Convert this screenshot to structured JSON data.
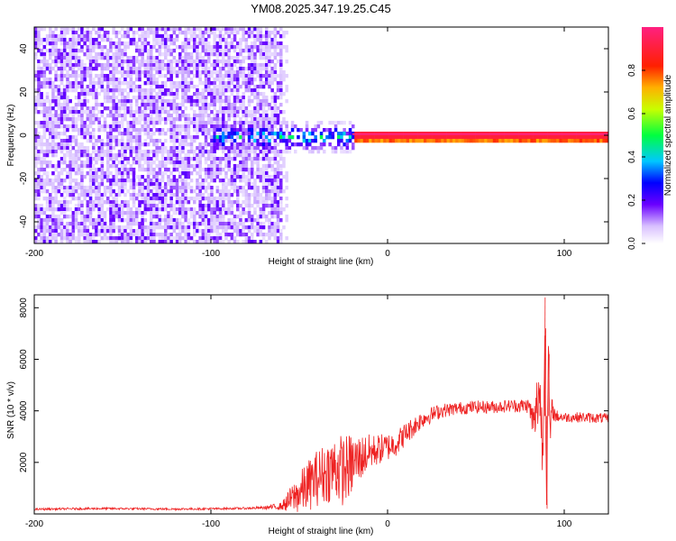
{
  "figure_title": "YM08.2025.347.19.25.C45",
  "chart_data": [
    {
      "type": "heatmap",
      "title": "YM08.2025.347.19.25.C45",
      "xlabel": "Height of straight line (km)",
      "ylabel": "Frequency (Hz)",
      "xlim": [
        -200,
        125
      ],
      "ylim": [
        -50,
        50
      ],
      "xticks": [
        -200,
        -100,
        0,
        100
      ],
      "xtick_labels": [
        "-200",
        "-100",
        "0",
        "100"
      ],
      "yticks": [
        -40,
        -20,
        0,
        20,
        40
      ],
      "ytick_labels": [
        "-40",
        "-20",
        "0",
        "20",
        "40"
      ],
      "colorbar": {
        "label": "Normalized spectral amplitude",
        "range": [
          0.0,
          1.0
        ],
        "ticks": [
          0.0,
          0.2,
          0.4,
          0.6,
          0.8
        ],
        "tick_labels": [
          "0.0",
          "0.2",
          "0.4",
          "0.6",
          "0.8"
        ],
        "colormap": "rainbow (white-violet-blue-cyan-green-yellow-red-magenta)"
      },
      "description_regions": [
        {
          "x_range": [
            -200,
            -60
          ],
          "freq_range": [
            -50,
            50
          ],
          "amplitude": 0.05,
          "pattern": "broadband speckled noise"
        },
        {
          "x_range": [
            -100,
            -20
          ],
          "freq_range": [
            -10,
            6
          ],
          "amplitude": 0.35,
          "pattern": "scattered energy near 0 Hz"
        },
        {
          "x_range": [
            -20,
            125
          ],
          "freq_center": 0.5,
          "amplitude": 0.95,
          "pattern": "narrow band at ~0.5 Hz"
        }
      ]
    },
    {
      "type": "line",
      "xlabel": "Height of straight line (km)",
      "ylabel": "SNR (10 * v/v)",
      "xlim": [
        -200,
        125
      ],
      "ylim": [
        0,
        8500
      ],
      "xticks": [
        -200,
        -100,
        0,
        100
      ],
      "xtick_labels": [
        "-200",
        "-100",
        "0",
        "100"
      ],
      "yticks": [
        2000,
        4000,
        6000,
        8000
      ],
      "ytick_labels": [
        "2000",
        "4000",
        "6000",
        "8000"
      ],
      "series": [
        {
          "name": "SNR",
          "color": "#ee2222",
          "x": [
            -200,
            -180,
            -160,
            -140,
            -120,
            -100,
            -80,
            -70,
            -60,
            -55,
            -50,
            -45,
            -40,
            -35,
            -30,
            -25,
            -20,
            -15,
            -10,
            -5,
            0,
            5,
            10,
            15,
            20,
            30,
            40,
            50,
            60,
            70,
            80,
            83,
            86,
            88,
            89,
            90,
            91,
            92,
            93,
            95,
            100,
            110,
            125
          ],
          "values": [
            180,
            200,
            210,
            200,
            190,
            200,
            220,
            240,
            300,
            550,
            800,
            1100,
            1400,
            1600,
            1800,
            1700,
            1900,
            2200,
            2400,
            2500,
            2600,
            2750,
            3100,
            3400,
            3700,
            4000,
            4100,
            4150,
            4150,
            4200,
            4200,
            3400,
            5000,
            2200,
            7600,
            300,
            6200,
            3000,
            4100,
            3800,
            3750,
            3750,
            3700
          ],
          "noise_amplitude": [
            40,
            40,
            40,
            40,
            40,
            40,
            40,
            60,
            150,
            500,
            800,
            1000,
            1100,
            1200,
            1300,
            1400,
            1200,
            900,
            700,
            600,
            550,
            500,
            450,
            400,
            350,
            280,
            250,
            250,
            250,
            250,
            300,
            900,
            1500,
            1200,
            800,
            300,
            900,
            800,
            400,
            250,
            200,
            200,
            200
          ]
        }
      ]
    }
  ]
}
